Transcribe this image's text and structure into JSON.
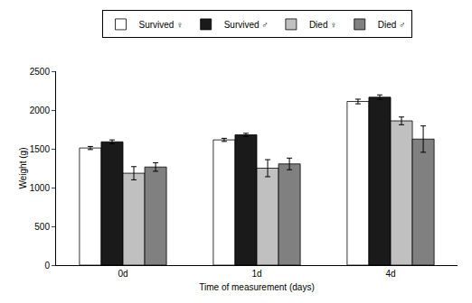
{
  "chart_data": {
    "type": "bar",
    "x_label": "Time of measurement (days)",
    "y_label": "Weight (g)",
    "categories": [
      "0d",
      "1d",
      "4d"
    ],
    "series": [
      {
        "name": "Survived ♀",
        "color": "#ffffff",
        "values": [
          1510,
          1615,
          2110
        ],
        "errors": [
          20,
          20,
          30
        ]
      },
      {
        "name": "Survived ♂",
        "color": "#1a1a1a",
        "values": [
          1590,
          1680,
          2165
        ],
        "errors": [
          25,
          20,
          30
        ]
      },
      {
        "name": "Died ♀",
        "color": "#c0c0c0",
        "values": [
          1185,
          1250,
          1860
        ],
        "errors": [
          85,
          110,
          50
        ]
      },
      {
        "name": "Died ♂",
        "color": "#808080",
        "values": [
          1265,
          1305,
          1625
        ],
        "errors": [
          55,
          75,
          170
        ]
      }
    ],
    "ylim": [
      0,
      2500
    ],
    "yticks": [
      0,
      500,
      1000,
      1500,
      2000,
      2500
    ],
    "grid": false,
    "legend": "top"
  }
}
